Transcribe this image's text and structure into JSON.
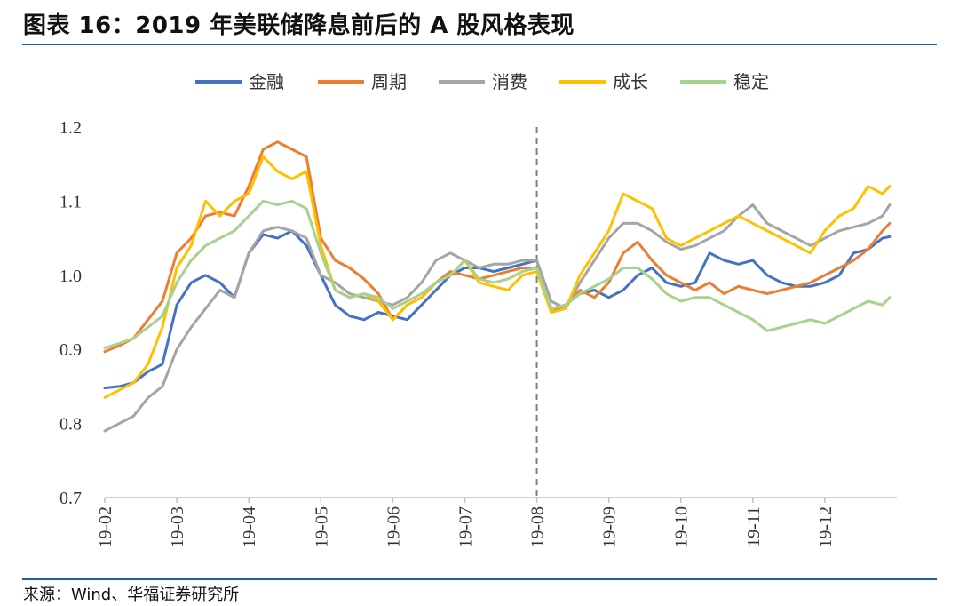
{
  "title": "图表 16：2019 年美联储降息前后的 A 股风格表现",
  "source": "来源：Wind、华福证券研究所",
  "colors": {
    "rule": "#1f5fa6",
    "axis": "#bfbfbf",
    "divider": "#7f7f7f"
  },
  "chart_data": {
    "type": "line",
    "title": "2019 年美联储降息前后的 A 股风格表现",
    "xlabel": "",
    "ylabel": "",
    "ylim": [
      0.7,
      1.2
    ],
    "yticks": [
      "1.2",
      "1.1",
      "1.0",
      "0.9",
      "0.8",
      "0.7"
    ],
    "ytick_values": [
      1.2,
      1.1,
      1.0,
      0.9,
      0.8,
      0.7
    ],
    "xlim": [
      0,
      11
    ],
    "xticks": [
      "19-02",
      "19-03",
      "19-04",
      "19-05",
      "19-06",
      "19-07",
      "19-08",
      "19-09",
      "19-10",
      "19-11",
      "19-12"
    ],
    "divider_x": 6.0,
    "legend_position": "top",
    "x": [
      0,
      0.2,
      0.4,
      0.6,
      0.8,
      1.0,
      1.2,
      1.4,
      1.6,
      1.8,
      2.0,
      2.2,
      2.4,
      2.6,
      2.8,
      3.0,
      3.2,
      3.4,
      3.6,
      3.8,
      4.0,
      4.2,
      4.4,
      4.6,
      4.8,
      5.0,
      5.2,
      5.4,
      5.6,
      5.8,
      6.0,
      6.2,
      6.4,
      6.6,
      6.8,
      7.0,
      7.2,
      7.4,
      7.6,
      7.8,
      8.0,
      8.2,
      8.4,
      8.6,
      8.8,
      9.0,
      9.2,
      9.4,
      9.6,
      9.8,
      10.0,
      10.2,
      10.4,
      10.6,
      10.8,
      10.9
    ],
    "series": [
      {
        "name": "金融",
        "color": "#4472c4",
        "values": [
          0.848,
          0.85,
          0.855,
          0.87,
          0.88,
          0.96,
          0.99,
          1.0,
          0.99,
          0.97,
          1.03,
          1.055,
          1.05,
          1.06,
          1.04,
          1.0,
          0.96,
          0.945,
          0.94,
          0.95,
          0.945,
          0.94,
          0.96,
          0.98,
          1.0,
          1.01,
          1.01,
          1.005,
          1.01,
          1.015,
          1.02,
          0.955,
          0.96,
          0.975,
          0.98,
          0.97,
          0.98,
          1.0,
          1.01,
          0.99,
          0.985,
          0.99,
          1.03,
          1.02,
          1.015,
          1.02,
          1.0,
          0.99,
          0.985,
          0.985,
          0.99,
          1.0,
          1.03,
          1.035,
          1.05,
          1.052
        ]
      },
      {
        "name": "周期",
        "color": "#ed7d31",
        "values": [
          0.897,
          0.905,
          0.915,
          0.94,
          0.965,
          1.03,
          1.05,
          1.08,
          1.085,
          1.08,
          1.12,
          1.17,
          1.18,
          1.17,
          1.16,
          1.05,
          1.02,
          1.01,
          0.995,
          0.975,
          0.94,
          0.96,
          0.97,
          0.99,
          1.005,
          1.0,
          0.995,
          1.0,
          1.005,
          1.01,
          1.01,
          0.95,
          0.96,
          0.98,
          0.97,
          0.99,
          1.03,
          1.045,
          1.02,
          1.0,
          0.99,
          0.98,
          0.99,
          0.975,
          0.985,
          0.98,
          0.975,
          0.98,
          0.985,
          0.99,
          1.0,
          1.01,
          1.02,
          1.035,
          1.06,
          1.07
        ]
      },
      {
        "name": "消费",
        "color": "#a5a5a5",
        "values": [
          0.79,
          0.8,
          0.81,
          0.835,
          0.85,
          0.9,
          0.93,
          0.955,
          0.98,
          0.97,
          1.03,
          1.06,
          1.065,
          1.06,
          1.05,
          1.0,
          0.99,
          0.975,
          0.97,
          0.965,
          0.96,
          0.97,
          0.99,
          1.02,
          1.03,
          1.02,
          1.01,
          1.015,
          1.015,
          1.02,
          1.02,
          0.965,
          0.955,
          0.99,
          1.02,
          1.05,
          1.07,
          1.07,
          1.06,
          1.045,
          1.035,
          1.04,
          1.05,
          1.06,
          1.08,
          1.095,
          1.07,
          1.06,
          1.05,
          1.04,
          1.05,
          1.06,
          1.065,
          1.07,
          1.08,
          1.095
        ]
      },
      {
        "name": "成长",
        "color": "#ffc000",
        "values": [
          0.835,
          0.845,
          0.855,
          0.88,
          0.93,
          1.01,
          1.04,
          1.1,
          1.08,
          1.1,
          1.11,
          1.16,
          1.14,
          1.13,
          1.14,
          1.04,
          0.98,
          0.97,
          0.975,
          0.965,
          0.94,
          0.96,
          0.97,
          0.99,
          1.0,
          1.02,
          0.99,
          0.985,
          0.98,
          1.0,
          1.005,
          0.95,
          0.955,
          1.0,
          1.03,
          1.06,
          1.11,
          1.1,
          1.09,
          1.05,
          1.04,
          1.05,
          1.06,
          1.07,
          1.08,
          1.07,
          1.06,
          1.05,
          1.04,
          1.03,
          1.06,
          1.08,
          1.09,
          1.12,
          1.11,
          1.12
        ]
      },
      {
        "name": "稳定",
        "color": "#a9d18e",
        "values": [
          0.902,
          0.908,
          0.915,
          0.93,
          0.945,
          0.99,
          1.02,
          1.04,
          1.05,
          1.06,
          1.08,
          1.1,
          1.095,
          1.1,
          1.09,
          1.03,
          0.98,
          0.97,
          0.975,
          0.97,
          0.955,
          0.965,
          0.975,
          0.99,
          1.0,
          1.02,
          0.995,
          0.99,
          0.995,
          1.005,
          1.01,
          0.955,
          0.96,
          0.975,
          0.985,
          0.995,
          1.01,
          1.01,
          0.995,
          0.975,
          0.965,
          0.97,
          0.97,
          0.96,
          0.95,
          0.94,
          0.925,
          0.93,
          0.935,
          0.94,
          0.935,
          0.945,
          0.955,
          0.965,
          0.96,
          0.97
        ]
      }
    ]
  }
}
